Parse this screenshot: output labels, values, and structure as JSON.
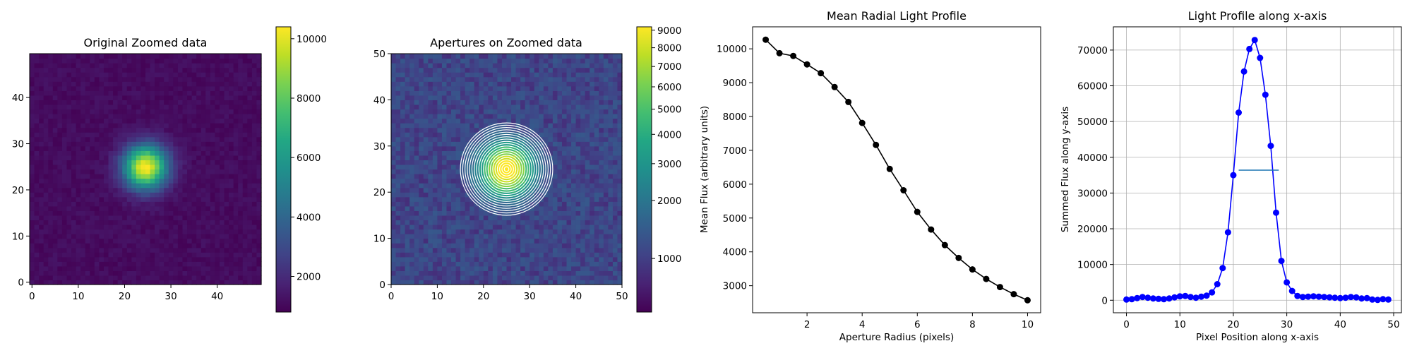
{
  "chart_data": [
    {
      "type": "heatmap",
      "title": "Original Zoomed data",
      "xticks": [
        "0",
        "10",
        "20",
        "30",
        "40"
      ],
      "yticks": [
        "0",
        "10",
        "20",
        "30",
        "40"
      ],
      "xlim": [
        -0.5,
        49.5
      ],
      "ylim": [
        -0.5,
        49.5
      ],
      "colormap": "viridis",
      "colorbar": {
        "range": [
          800,
          10400
        ],
        "ticks": [
          "2000",
          "4000",
          "6000",
          "8000",
          "10000"
        ],
        "scale": "linear"
      },
      "source": {
        "center": [
          24.5,
          25
        ],
        "sigma": 3.3,
        "peak": 10400,
        "background": 1100
      }
    },
    {
      "type": "heatmap",
      "title": "Apertures on Zoomed data",
      "xticks": [
        "0",
        "10",
        "20",
        "30",
        "40",
        "50"
      ],
      "yticks": [
        "0",
        "10",
        "20",
        "30",
        "40",
        "50"
      ],
      "xlim": [
        0,
        50
      ],
      "ylim": [
        0,
        50
      ],
      "colormap": "viridis",
      "colorbar": {
        "range": [
          700,
          9200
        ],
        "ticks": [
          "1000",
          "2000",
          "3000",
          "4000",
          "5000",
          "6000",
          "7000",
          "8000",
          "9000"
        ],
        "scale": "sqrt"
      },
      "source": {
        "center": [
          25,
          25
        ],
        "sigma": 3.3,
        "peak": 10400,
        "background": 1100
      },
      "apertures": {
        "center": [
          25,
          25
        ],
        "radii": [
          0.5,
          1,
          1.5,
          2,
          2.5,
          3,
          3.5,
          4,
          4.5,
          5,
          5.5,
          6,
          6.5,
          7,
          7.5,
          8,
          8.5,
          9,
          9.5,
          10
        ],
        "color": "#ffffff"
      }
    },
    {
      "type": "line",
      "title": "Mean Radial Light Profile",
      "xlabel": "Aperture Radius (pixels)",
      "ylabel": "Mean Flux (arbitrary units)",
      "xlim": [
        0.025,
        10.475
      ],
      "ylim": [
        2200,
        10650
      ],
      "xticks": [
        "2",
        "4",
        "6",
        "8",
        "10"
      ],
      "yticks": [
        "3000",
        "4000",
        "5000",
        "6000",
        "7000",
        "8000",
        "9000",
        "10000"
      ],
      "series": [
        {
          "color": "#000000",
          "x": [
            0.5,
            1,
            1.5,
            2,
            2.5,
            3,
            3.5,
            4,
            4.5,
            5,
            5.5,
            6,
            6.5,
            7,
            7.5,
            8,
            8.5,
            9,
            9.5,
            10
          ],
          "y": [
            10270,
            9870,
            9790,
            9540,
            9280,
            8870,
            8430,
            7810,
            7160,
            6450,
            5820,
            5180,
            4660,
            4200,
            3820,
            3480,
            3200,
            2960,
            2750,
            2570
          ]
        }
      ]
    },
    {
      "type": "line",
      "title": "Light Profile along x-axis",
      "xlabel": "Pixel Position along x-axis",
      "ylabel": "Summed Flux along y-axis",
      "xlim": [
        -2.45,
        51.45
      ],
      "ylim": [
        -3500,
        76500
      ],
      "xticks": [
        "0",
        "10",
        "20",
        "30",
        "40",
        "50"
      ],
      "yticks": [
        "0",
        "10000",
        "20000",
        "30000",
        "40000",
        "50000",
        "60000",
        "70000"
      ],
      "grid": true,
      "series": [
        {
          "color": "#0000ff",
          "x": [
            0,
            1,
            2,
            3,
            4,
            5,
            6,
            7,
            8,
            9,
            10,
            11,
            12,
            13,
            14,
            15,
            16,
            17,
            18,
            19,
            20,
            21,
            22,
            23,
            24,
            25,
            26,
            27,
            28,
            29,
            30,
            31,
            32,
            33,
            34,
            35,
            36,
            37,
            38,
            39,
            40,
            41,
            42,
            43,
            44,
            45,
            46,
            47,
            48,
            49
          ],
          "y": [
            200,
            300,
            600,
            900,
            700,
            500,
            400,
            300,
            500,
            800,
            1100,
            1200,
            900,
            700,
            1000,
            1300,
            2200,
            4500,
            9000,
            19000,
            35000,
            52500,
            64000,
            70300,
            72800,
            67800,
            57500,
            43200,
            24500,
            11000,
            5000,
            2600,
            1200,
            900,
            1000,
            1100,
            1000,
            900,
            800,
            700,
            600,
            700,
            900,
            800,
            500,
            600,
            200,
            100,
            300,
            200
          ]
        }
      ],
      "hline": {
        "y": 36400,
        "xmin": 21,
        "xmax": 28.5,
        "color": "#1f77b4"
      }
    }
  ]
}
